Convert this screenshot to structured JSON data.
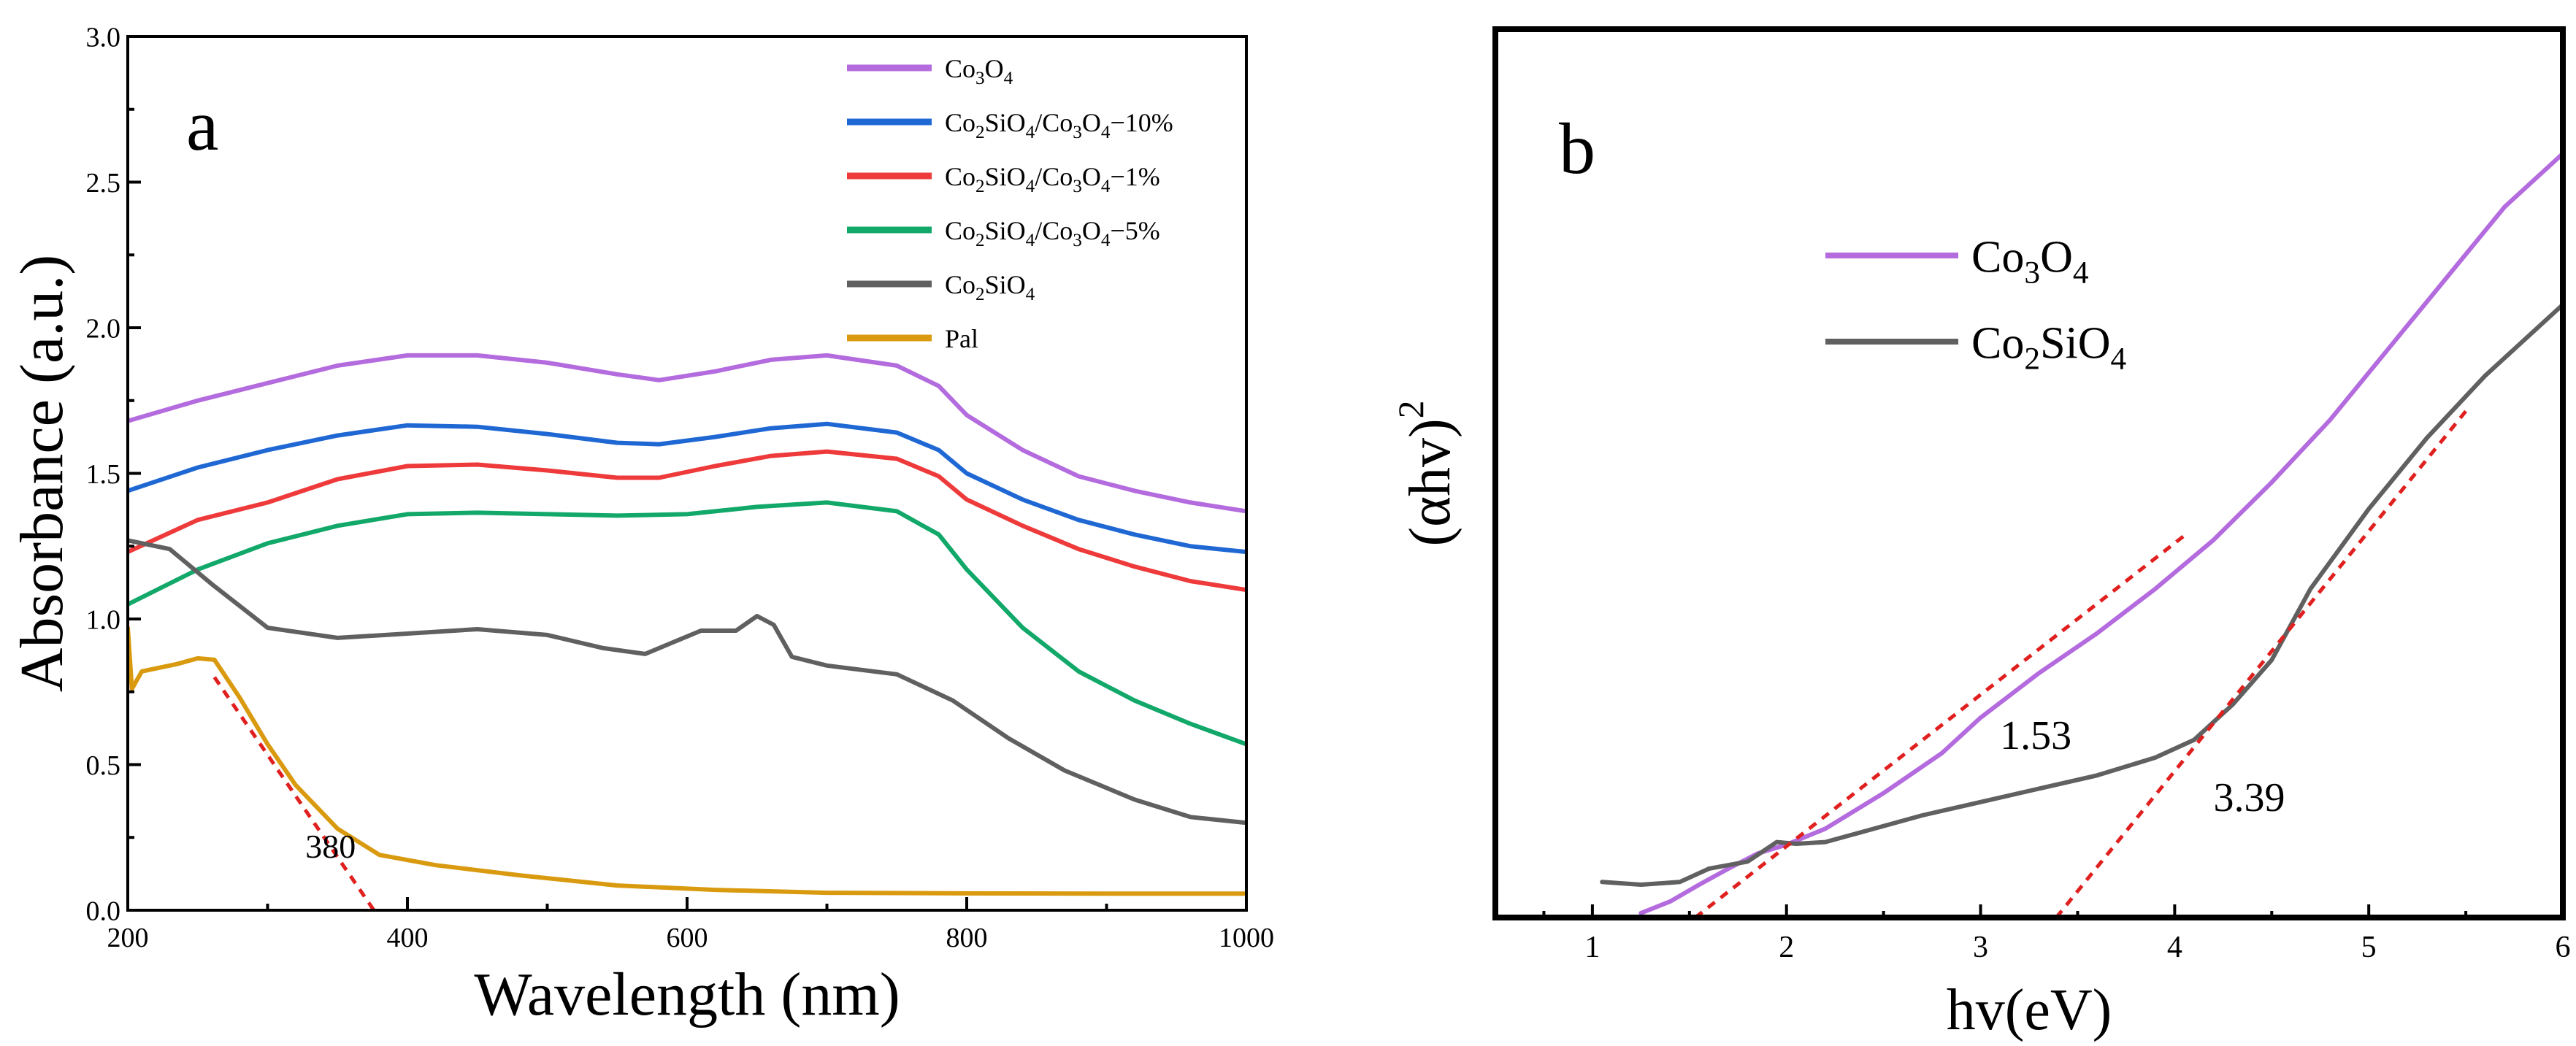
{
  "chart_data": [
    {
      "panel_label": "a",
      "type": "line",
      "title": "",
      "xlabel": "Wavelength (nm)",
      "ylabel": "Absorbance (a.u.)",
      "xlim": [
        200,
        1000
      ],
      "ylim": [
        0.0,
        3.0
      ],
      "xticks": [
        "200",
        "400",
        "600",
        "800",
        "1000"
      ],
      "yticks": [
        "0.0",
        "0.5",
        "1.0",
        "1.5",
        "2.0",
        "2.5",
        "3.0"
      ],
      "grid": false,
      "legend_position": "top-right",
      "series": [
        {
          "name": "Co3O4",
          "legend": {
            "base1": "Co",
            "sub1": "3",
            "base2": "O",
            "sub2": "4",
            "tail": ""
          },
          "color": "#b36bde",
          "points": [
            [
              200,
              1.68
            ],
            [
              250,
              1.75
            ],
            [
              300,
              1.81
            ],
            [
              350,
              1.87
            ],
            [
              400,
              1.905
            ],
            [
              450,
              1.905
            ],
            [
              500,
              1.88
            ],
            [
              550,
              1.84
            ],
            [
              580,
              1.82
            ],
            [
              620,
              1.85
            ],
            [
              660,
              1.89
            ],
            [
              700,
              1.905
            ],
            [
              750,
              1.87
            ],
            [
              780,
              1.8
            ],
            [
              800,
              1.7
            ],
            [
              840,
              1.58
            ],
            [
              880,
              1.49
            ],
            [
              920,
              1.44
            ],
            [
              960,
              1.4
            ],
            [
              1000,
              1.37
            ]
          ]
        },
        {
          "name": "Co2SiO4/Co3O4-10%",
          "legend": {
            "base1": "Co",
            "sub1": "2",
            "base2": "SiO",
            "sub2": "4",
            "tail": "/Co3O4−10%"
          },
          "color": "#1f68d4",
          "points": [
            [
              200,
              1.44
            ],
            [
              250,
              1.52
            ],
            [
              300,
              1.58
            ],
            [
              350,
              1.63
            ],
            [
              400,
              1.665
            ],
            [
              450,
              1.66
            ],
            [
              500,
              1.635
            ],
            [
              550,
              1.605
            ],
            [
              580,
              1.6
            ],
            [
              620,
              1.625
            ],
            [
              660,
              1.655
            ],
            [
              700,
              1.67
            ],
            [
              750,
              1.64
            ],
            [
              780,
              1.58
            ],
            [
              800,
              1.5
            ],
            [
              840,
              1.41
            ],
            [
              880,
              1.34
            ],
            [
              920,
              1.29
            ],
            [
              960,
              1.25
            ],
            [
              1000,
              1.23
            ]
          ]
        },
        {
          "name": "Co2SiO4/Co3O4-1%",
          "legend": {
            "base1": "Co",
            "sub1": "2",
            "base2": "SiO",
            "sub2": "4",
            "tail": "/Co3O4−1%"
          },
          "color": "#ee3a3a",
          "points": [
            [
              200,
              1.23
            ],
            [
              250,
              1.34
            ],
            [
              300,
              1.4
            ],
            [
              350,
              1.48
            ],
            [
              400,
              1.525
            ],
            [
              450,
              1.53
            ],
            [
              500,
              1.51
            ],
            [
              550,
              1.485
            ],
            [
              580,
              1.485
            ],
            [
              620,
              1.525
            ],
            [
              660,
              1.56
            ],
            [
              700,
              1.575
            ],
            [
              750,
              1.55
            ],
            [
              780,
              1.49
            ],
            [
              800,
              1.41
            ],
            [
              840,
              1.32
            ],
            [
              880,
              1.24
            ],
            [
              920,
              1.18
            ],
            [
              960,
              1.13
            ],
            [
              1000,
              1.1
            ]
          ]
        },
        {
          "name": "Co2SiO4/Co3O4-5%",
          "legend": {
            "base1": "Co",
            "sub1": "2",
            "base2": "SiO",
            "sub2": "4",
            "tail": "/Co3O4−5%"
          },
          "color": "#12a86a",
          "points": [
            [
              200,
              1.05
            ],
            [
              250,
              1.17
            ],
            [
              300,
              1.26
            ],
            [
              350,
              1.32
            ],
            [
              400,
              1.36
            ],
            [
              450,
              1.365
            ],
            [
              500,
              1.36
            ],
            [
              550,
              1.355
            ],
            [
              600,
              1.36
            ],
            [
              650,
              1.385
            ],
            [
              700,
              1.4
            ],
            [
              750,
              1.37
            ],
            [
              780,
              1.29
            ],
            [
              800,
              1.17
            ],
            [
              840,
              0.97
            ],
            [
              880,
              0.82
            ],
            [
              920,
              0.72
            ],
            [
              960,
              0.64
            ],
            [
              1000,
              0.57
            ]
          ]
        },
        {
          "name": "Co2SiO4",
          "legend": {
            "base1": "Co",
            "sub1": "2",
            "base2": "SiO",
            "sub2": "4",
            "tail": ""
          },
          "color": "#606060",
          "points": [
            [
              200,
              1.27
            ],
            [
              230,
              1.24
            ],
            [
              260,
              1.12
            ],
            [
              300,
              0.97
            ],
            [
              350,
              0.935
            ],
            [
              400,
              0.95
            ],
            [
              450,
              0.965
            ],
            [
              500,
              0.945
            ],
            [
              540,
              0.9
            ],
            [
              570,
              0.88
            ],
            [
              590,
              0.92
            ],
            [
              610,
              0.96
            ],
            [
              635,
              0.96
            ],
            [
              650,
              1.01
            ],
            [
              662,
              0.98
            ],
            [
              675,
              0.87
            ],
            [
              700,
              0.84
            ],
            [
              750,
              0.81
            ],
            [
              790,
              0.72
            ],
            [
              830,
              0.59
            ],
            [
              870,
              0.48
            ],
            [
              920,
              0.38
            ],
            [
              960,
              0.32
            ],
            [
              1000,
              0.3
            ]
          ]
        },
        {
          "name": "Pal",
          "legend": {
            "base1": "Pal",
            "sub1": "",
            "base2": "",
            "sub2": "",
            "tail": ""
          },
          "color": "#d99a0f",
          "points": [
            [
              200,
              0.97
            ],
            [
              203,
              0.76
            ],
            [
              210,
              0.82
            ],
            [
              220,
              0.83
            ],
            [
              235,
              0.845
            ],
            [
              250,
              0.865
            ],
            [
              262,
              0.86
            ],
            [
              280,
              0.73
            ],
            [
              300,
              0.57
            ],
            [
              320,
              0.43
            ],
            [
              350,
              0.28
            ],
            [
              380,
              0.19
            ],
            [
              420,
              0.155
            ],
            [
              480,
              0.12
            ],
            [
              550,
              0.085
            ],
            [
              620,
              0.07
            ],
            [
              700,
              0.06
            ],
            [
              800,
              0.058
            ],
            [
              900,
              0.057
            ],
            [
              1000,
              0.057
            ]
          ]
        }
      ],
      "fit_lines": [
        {
          "from": [
            262,
            0.8
          ],
          "to": [
            376,
            0.0
          ]
        }
      ],
      "annotations": [
        {
          "text": "380",
          "x": 327,
          "y": 0.18
        }
      ]
    },
    {
      "panel_label": "b",
      "type": "line",
      "title": "",
      "xlabel": "hv(eV)",
      "ylabel": "(αhv)²",
      "ylabel_parts": {
        "base": "(αhv)",
        "sup": "2"
      },
      "xlim": [
        0.5,
        6.0
      ],
      "ylim": [
        0.0,
        1.0
      ],
      "xticks": [
        "1",
        "2",
        "3",
        "4",
        "5",
        "6"
      ],
      "yticks": [],
      "grid": false,
      "legend_position": "top-left",
      "series": [
        {
          "name": "Co3O4",
          "legend": {
            "base1": "Co",
            "sub1": "3",
            "base2": "O",
            "sub2": "4",
            "tail": ""
          },
          "color": "#b36bde",
          "points": [
            [
              1.25,
              0.005
            ],
            [
              1.4,
              0.018
            ],
            [
              1.55,
              0.037
            ],
            [
              1.7,
              0.055
            ],
            [
              1.85,
              0.072
            ],
            [
              2.0,
              0.082
            ],
            [
              2.2,
              0.1
            ],
            [
              2.5,
              0.14
            ],
            [
              2.8,
              0.185
            ],
            [
              3.0,
              0.225
            ],
            [
              3.3,
              0.275
            ],
            [
              3.6,
              0.32
            ],
            [
              3.9,
              0.37
            ],
            [
              4.2,
              0.425
            ],
            [
              4.5,
              0.49
            ],
            [
              4.8,
              0.56
            ],
            [
              5.1,
              0.64
            ],
            [
              5.4,
              0.72
            ],
            [
              5.7,
              0.8
            ],
            [
              6.0,
              0.86
            ]
          ]
        },
        {
          "name": "Co2SiO4",
          "legend": {
            "base1": "Co",
            "sub1": "2",
            "base2": "SiO",
            "sub2": "4",
            "tail": ""
          },
          "color": "#606060",
          "points": [
            [
              1.05,
              0.04
            ],
            [
              1.25,
              0.037
            ],
            [
              1.45,
              0.04
            ],
            [
              1.6,
              0.055
            ],
            [
              1.8,
              0.063
            ],
            [
              1.95,
              0.085
            ],
            [
              2.05,
              0.083
            ],
            [
              2.2,
              0.085
            ],
            [
              2.4,
              0.097
            ],
            [
              2.7,
              0.115
            ],
            [
              3.0,
              0.13
            ],
            [
              3.3,
              0.145
            ],
            [
              3.6,
              0.16
            ],
            [
              3.9,
              0.18
            ],
            [
              4.1,
              0.2
            ],
            [
              4.3,
              0.24
            ],
            [
              4.5,
              0.29
            ],
            [
              4.7,
              0.37
            ],
            [
              5.0,
              0.46
            ],
            [
              5.3,
              0.54
            ],
            [
              5.6,
              0.61
            ],
            [
              6.0,
              0.69
            ]
          ]
        }
      ],
      "fit_lines": [
        {
          "from": [
            1.53,
            0.0
          ],
          "to": [
            4.05,
            0.43
          ]
        },
        {
          "from": [
            3.39,
            0.0
          ],
          "to": [
            5.5,
            0.57
          ]
        }
      ],
      "annotations": [
        {
          "text": "1.53",
          "x": 3.1,
          "y": 0.19
        },
        {
          "text": "3.39",
          "x": 4.2,
          "y": 0.12
        }
      ]
    }
  ]
}
